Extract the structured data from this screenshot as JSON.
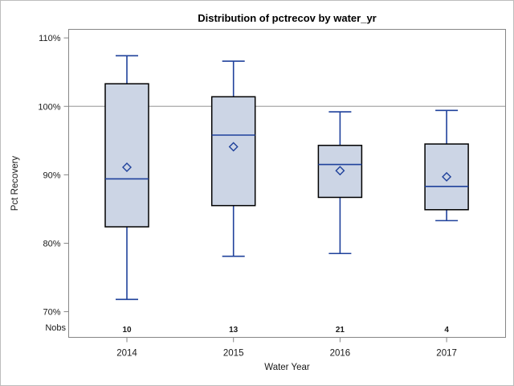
{
  "chart_data": {
    "type": "box",
    "title": "Distribution of pctrecov by water_yr",
    "xlabel": "Water Year",
    "ylabel": "Pct Recovery",
    "nobs_label": "Nobs",
    "categories": [
      "2014",
      "2015",
      "2016",
      "2017"
    ],
    "nobs": [
      10,
      13,
      21,
      4
    ],
    "series": [
      {
        "category": "2014",
        "low": 71.8,
        "q1": 82.4,
        "median": 89.4,
        "q3": 103.3,
        "high": 107.4,
        "mean": 91.1,
        "nobs": 10
      },
      {
        "category": "2015",
        "low": 78.1,
        "q1": 85.5,
        "median": 95.8,
        "q3": 101.4,
        "high": 106.6,
        "mean": 94.1,
        "nobs": 13
      },
      {
        "category": "2016",
        "low": 78.5,
        "q1": 86.7,
        "median": 91.5,
        "q3": 94.3,
        "high": 99.2,
        "mean": 90.6,
        "nobs": 21
      },
      {
        "category": "2017",
        "low": 83.3,
        "q1": 84.9,
        "median": 88.3,
        "q3": 94.5,
        "high": 99.4,
        "mean": 89.7,
        "nobs": 4
      }
    ],
    "yticks": [
      110,
      100,
      90,
      80,
      70
    ],
    "ytick_suffix": "%",
    "ylim": [
      66.25,
      111.25
    ],
    "reference_line": 100,
    "grid": false,
    "legend": "none",
    "mean_marker": "diamond",
    "colors": {
      "box_fill": "#ccd5e5",
      "box_border": "#000000",
      "line_blue": "#1f419b",
      "reference_line": "#a8a8a8",
      "axis_border": "#868686",
      "tick_text": "#1a1a1a",
      "figure_border": "#bdbdbd"
    }
  }
}
